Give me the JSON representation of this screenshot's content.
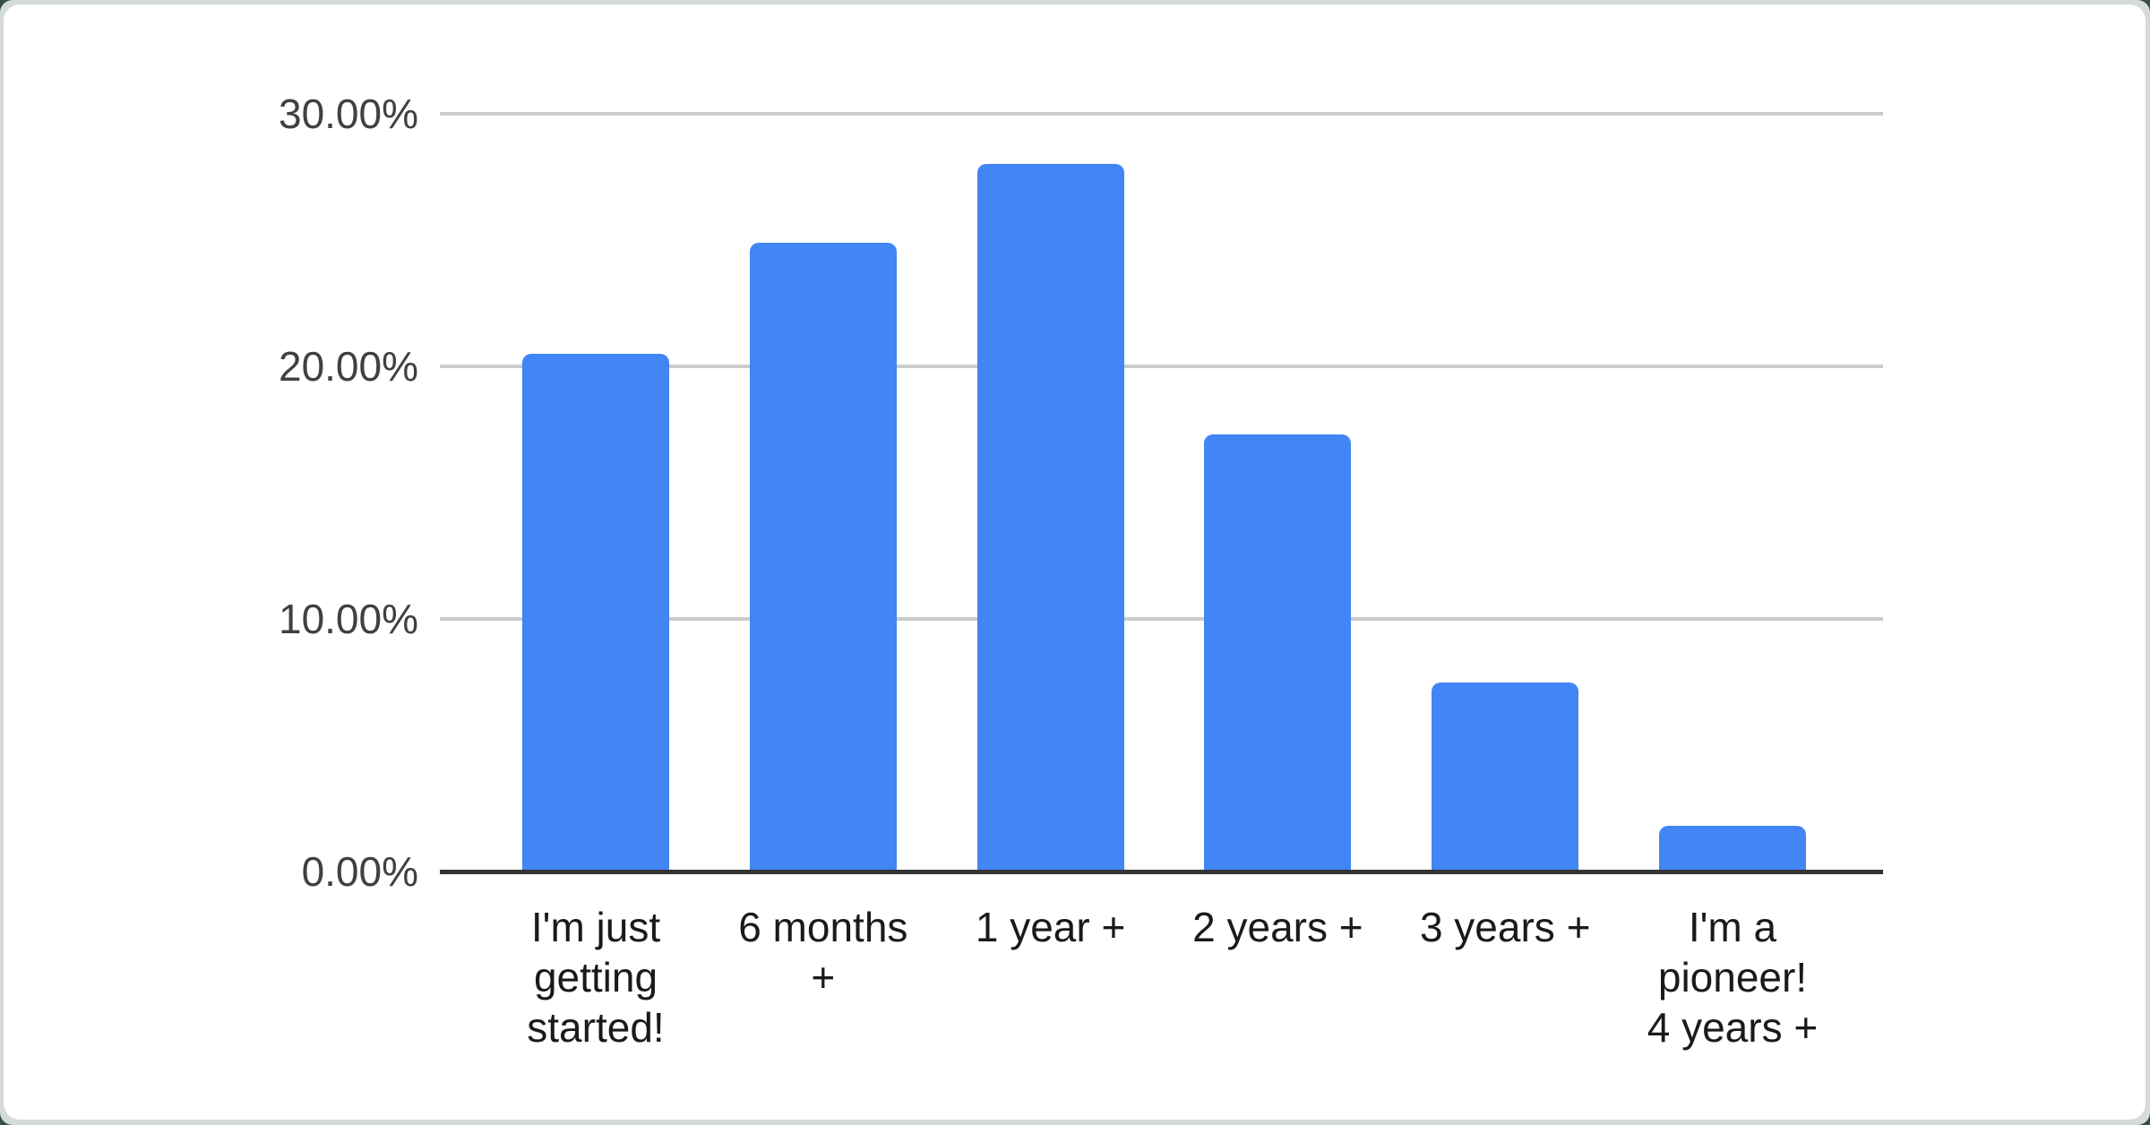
{
  "chart_data": {
    "type": "bar",
    "title": "",
    "xlabel": "",
    "ylabel": "",
    "categories": [
      "I'm just getting started!",
      "6 months +",
      "1 year +",
      "2 years +",
      "3 years +",
      "I'm a pioneer! 4 years +"
    ],
    "values": [
      20.5,
      24.9,
      28.0,
      17.3,
      7.5,
      1.8
    ],
    "value_unit": "%",
    "ylim": [
      0,
      30
    ],
    "yticks": [
      {
        "value": 0,
        "label": "0.00%"
      },
      {
        "value": 10,
        "label": "10.00%"
      },
      {
        "value": 20,
        "label": "20.00%"
      },
      {
        "value": 30,
        "label": "30.00%"
      }
    ],
    "grid": true,
    "legend": "none",
    "colors": {
      "bar": "#4285f4",
      "gridline": "#cccccc",
      "axis_line": "#333333",
      "y_tick_text": "#404040",
      "category_text": "#1a1a1a",
      "card_background": "#ffffff",
      "page_background": "#d5dadb"
    }
  }
}
